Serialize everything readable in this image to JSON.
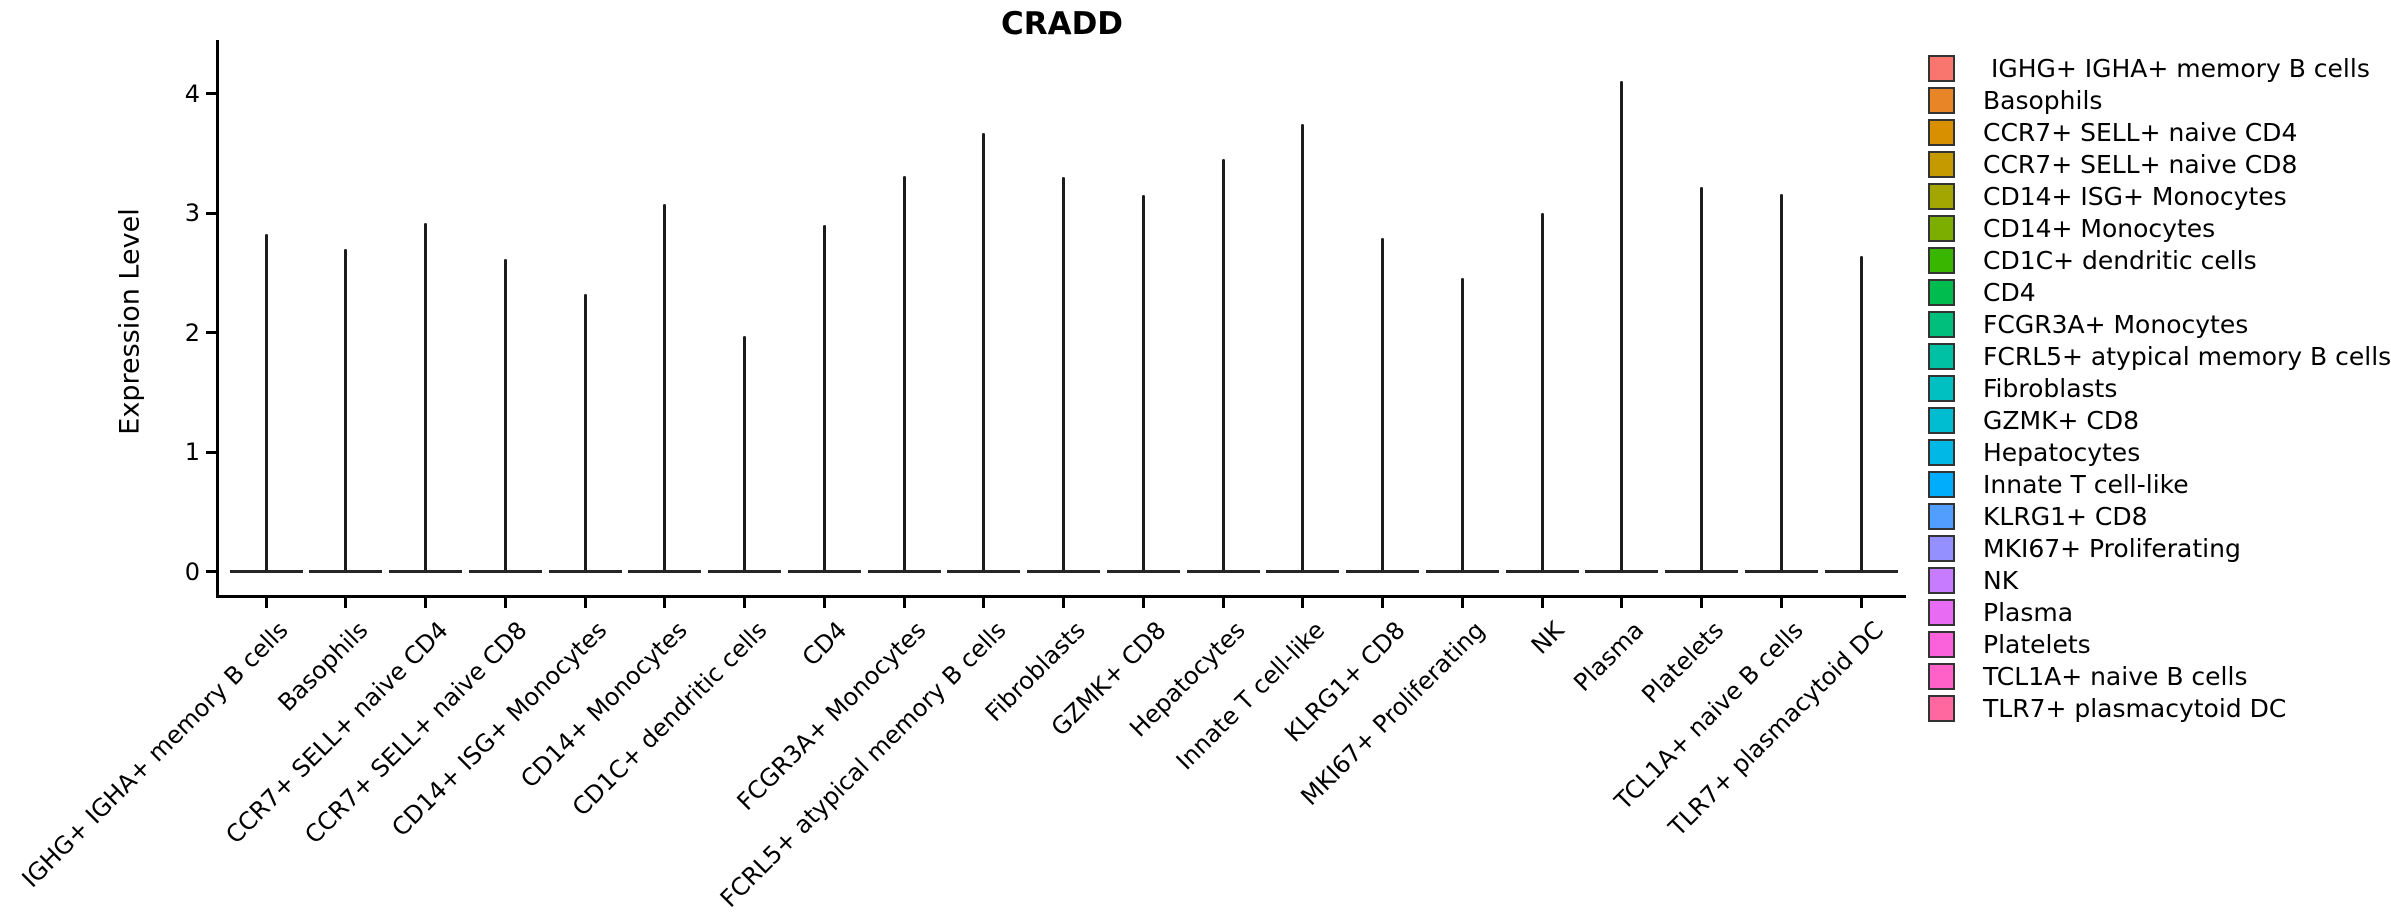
{
  "title": "CRADD",
  "y_axis": {
    "label": "Expression Level",
    "tick_labels": [
      "0",
      "1",
      "2",
      "3",
      "4"
    ]
  },
  "x_axis": {
    "label": "",
    "tick_rotation_deg": 45
  },
  "style": {
    "violin_outline_color": "#1c1c1c",
    "axis_color": "#000000",
    "background": "#ffffff"
  },
  "chart_data": {
    "type": "violin",
    "title": "CRADD",
    "xlabel": "",
    "ylabel": "Expression Level",
    "ylim": [
      0,
      4.35
    ],
    "y_ticks": [
      0,
      1,
      2,
      3,
      4
    ],
    "grid": false,
    "legend_position": "right",
    "note": "Single-gene violin plot (Seurat-style). Each violin is collapsed to a thin vertical spike: the bulk of cells sit at expression 0 (wide horizontal base at y=0) and the spike extends to the maximum expression level observed for that cell type.",
    "categories": [
      "IGHG+ IGHA+ memory B cells",
      "Basophils",
      "CCR7+ SELL+ naive CD4",
      "CCR7+ SELL+ naive CD8",
      "CD14+ ISG+ Monocytes",
      "CD14+ Monocytes",
      "CD1C+ dendritic cells",
      "CD4",
      "FCGR3A+ Monocytes",
      "FCRL5+ atypical memory B cells",
      "Fibroblasts",
      "GZMK+ CD8",
      "Hepatocytes",
      "Innate T cell-like",
      "KLRG1+ CD8",
      "MKI67+ Proliferating",
      "NK",
      "Plasma",
      "Platelets",
      "TCL1A+ naive B cells",
      "TLR7+ plasmacytoid DC"
    ],
    "colors": [
      "#F8766D",
      "#E88526",
      "#D89000",
      "#C49A00",
      "#A3A500",
      "#7CAE00",
      "#39B600",
      "#00BB4E",
      "#00BF7D",
      "#00C1A3",
      "#00C0C2",
      "#00BDD2",
      "#00B8E5",
      "#00ACFC",
      "#529EFF",
      "#9590FF",
      "#C77CFF",
      "#E76BF3",
      "#FA62DB",
      "#FF61C9",
      "#FF689E"
    ],
    "series": [
      {
        "name": "max_expression_level",
        "values": [
          2.83,
          2.7,
          2.92,
          2.62,
          2.32,
          3.08,
          1.97,
          2.9,
          3.31,
          3.67,
          3.3,
          3.15,
          3.45,
          3.75,
          2.79,
          2.46,
          3.0,
          4.11,
          3.22,
          3.16,
          2.64
        ]
      },
      {
        "name": "mode_expression_level",
        "values": [
          0,
          0,
          0,
          0,
          0,
          0,
          0,
          0,
          0,
          0,
          0,
          0,
          0,
          0,
          0,
          0,
          0,
          0,
          0,
          0,
          0
        ]
      }
    ]
  },
  "legend": {
    "labels": [
      " IGHG+ IGHA+ memory B cells",
      "Basophils",
      "CCR7+ SELL+ naive CD4",
      "CCR7+ SELL+ naive CD8",
      "CD14+ ISG+ Monocytes",
      "CD14+ Monocytes",
      "CD1C+ dendritic cells",
      "CD4",
      "FCGR3A+ Monocytes",
      "FCRL5+ atypical memory B cells",
      "Fibroblasts",
      "GZMK+ CD8",
      "Hepatocytes",
      "Innate T cell-like",
      "KLRG1+ CD8",
      "MKI67+ Proliferating",
      "NK",
      "Plasma",
      "Platelets",
      "TCL1A+ naive B cells",
      "TLR7+ plasmacytoid DC"
    ]
  }
}
